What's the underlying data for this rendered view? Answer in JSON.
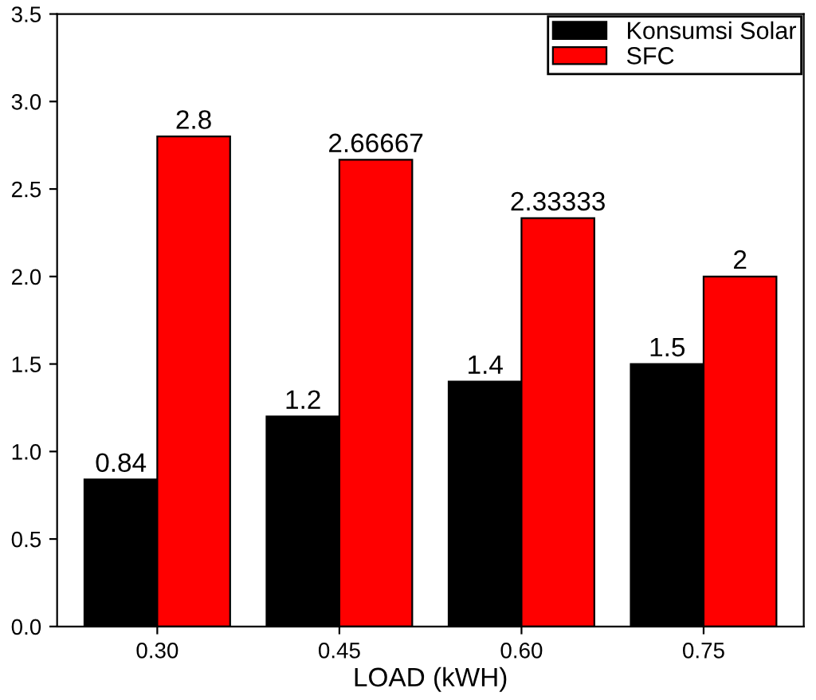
{
  "chart_data": {
    "type": "bar",
    "xlabel": "LOAD (kWH)",
    "categories": [
      "0.30",
      "0.45",
      "0.60",
      "0.75"
    ],
    "series": [
      {
        "name": "Konsumsi Solar",
        "color": "#000000",
        "values": [
          0.84,
          1.2,
          1.4,
          1.5
        ]
      },
      {
        "name": "SFC",
        "color": "#ff0000",
        "values": [
          2.8,
          2.66667,
          2.33333,
          2
        ]
      }
    ],
    "ylim": [
      0,
      3.5
    ],
    "yticks": [
      {
        "value": 0,
        "label": "0.0"
      },
      {
        "value": 0.5,
        "label": "0.5"
      },
      {
        "value": 1,
        "label": "1.0"
      },
      {
        "value": 1.5,
        "label": "1.5"
      },
      {
        "value": 2,
        "label": "2.0"
      },
      {
        "value": 2.5,
        "label": "2.5"
      },
      {
        "value": 3,
        "label": "3.0"
      },
      {
        "value": 3.5,
        "label": "3.5"
      }
    ],
    "data_labels": true,
    "grid": false,
    "legend": "top right"
  }
}
